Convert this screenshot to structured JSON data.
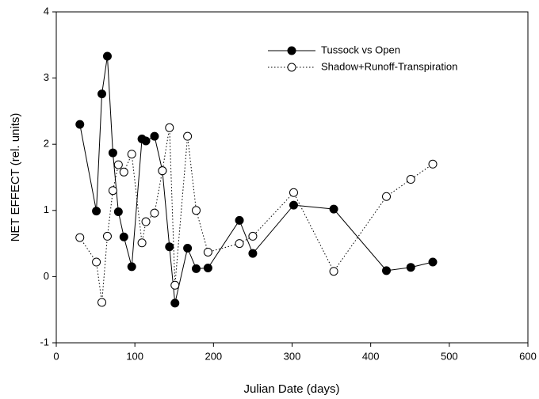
{
  "chart_data": {
    "type": "line",
    "xlabel": "Julian Date (days)",
    "ylabel": "NET EFFECT (rel. units)",
    "xlim": [
      0,
      600
    ],
    "xticks": [
      0,
      100,
      200,
      300,
      400,
      500,
      600
    ],
    "ylim": [
      -1,
      4
    ],
    "yticks": [
      -1,
      0,
      1,
      2,
      3,
      4
    ],
    "legend": "upper right",
    "series": [
      {
        "name": "Tussock vs Open",
        "color": "#000000",
        "marker": "filled",
        "linestyle": "solid",
        "x": [
          30,
          51,
          58,
          65,
          72,
          79,
          86,
          96,
          109,
          114,
          125,
          135,
          144,
          151,
          167,
          178,
          193,
          233,
          250,
          302,
          353,
          420,
          451,
          479
        ],
        "values": [
          2.3,
          0.99,
          2.76,
          3.33,
          1.87,
          0.98,
          0.6,
          0.15,
          2.08,
          2.05,
          2.12,
          1.6,
          0.45,
          -0.4,
          0.43,
          0.12,
          0.13,
          0.85,
          0.35,
          1.08,
          1.02,
          0.09,
          0.14,
          0.22
        ]
      },
      {
        "name": "Shadow+Runoff-Transpiration",
        "color": "#000000",
        "marker": "open",
        "linestyle": "dotted",
        "x": [
          30,
          51,
          58,
          65,
          72,
          79,
          86,
          96,
          109,
          114,
          125,
          135,
          144,
          151,
          167,
          178,
          193,
          233,
          250,
          302,
          353,
          420,
          451,
          479
        ],
        "values": [
          0.59,
          0.22,
          -0.39,
          0.61,
          1.3,
          1.69,
          1.58,
          1.85,
          0.51,
          0.83,
          0.96,
          1.6,
          2.25,
          -0.13,
          2.12,
          1.0,
          0.37,
          0.5,
          0.61,
          1.27,
          0.08,
          1.21,
          1.47,
          1.7
        ]
      }
    ]
  }
}
